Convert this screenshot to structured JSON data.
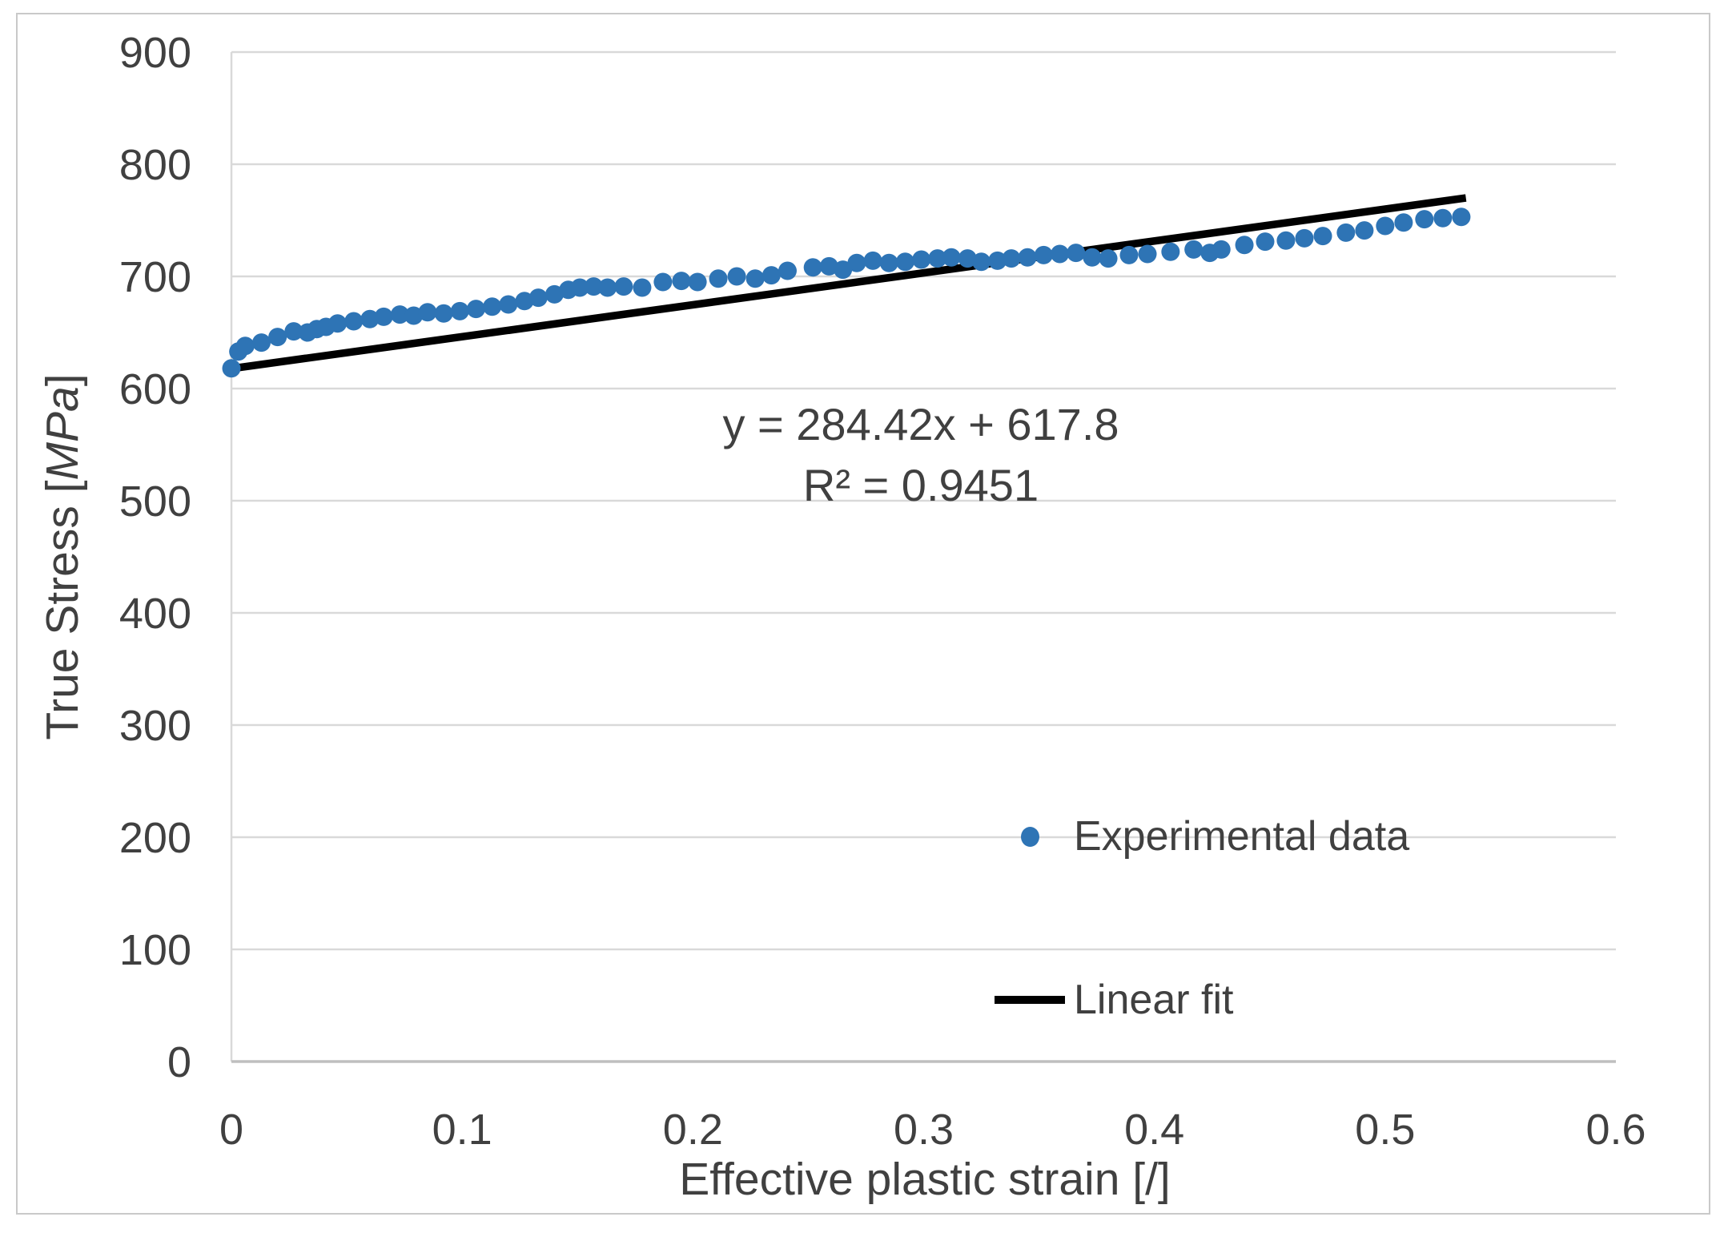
{
  "colors": {
    "scatter": "#2E74B5",
    "fit_line": "#000000",
    "text": "#404040",
    "gridline": "#D9D9D9",
    "axis_line": "#BFBFBF"
  },
  "chart_data": {
    "type": "scatter",
    "title": "",
    "xlabel": "Effective plastic strain [/]",
    "ylabel": "True Stress [MPa]",
    "ylabel_parts": {
      "prefix": "True Stress [",
      "unit": "MPa",
      "suffix": "]"
    },
    "xlim": [
      0,
      0.6
    ],
    "ylim": [
      0,
      900
    ],
    "x_ticks": {
      "values": [
        0,
        0.1,
        0.2,
        0.3,
        0.4,
        0.5,
        0.6
      ],
      "labels": [
        "0",
        "0.1",
        "0.2",
        "0.3",
        "0.4",
        "0.5",
        "0.6"
      ]
    },
    "y_ticks": {
      "values": [
        0,
        100,
        200,
        300,
        400,
        500,
        600,
        700,
        800,
        900
      ],
      "labels": [
        "0",
        "100",
        "200",
        "300",
        "400",
        "500",
        "600",
        "700",
        "800",
        "900"
      ]
    },
    "grid": "horizontal-only",
    "legend_position": "inside-lower-right",
    "annotation": {
      "equation": "y = 284.42x + 617.8",
      "r_squared": "R² = 0.9451"
    },
    "series": [
      {
        "name": "Experimental data",
        "type": "scatter",
        "marker": "dot",
        "color": "#2E74B5",
        "points": [
          [
            0.0,
            618
          ],
          [
            0.003,
            633
          ],
          [
            0.006,
            638
          ],
          [
            0.013,
            641
          ],
          [
            0.02,
            646
          ],
          [
            0.027,
            651
          ],
          [
            0.033,
            650
          ],
          [
            0.037,
            653
          ],
          [
            0.041,
            655
          ],
          [
            0.046,
            658
          ],
          [
            0.053,
            660
          ],
          [
            0.06,
            662
          ],
          [
            0.066,
            664
          ],
          [
            0.073,
            666
          ],
          [
            0.079,
            665
          ],
          [
            0.085,
            668
          ],
          [
            0.092,
            667
          ],
          [
            0.099,
            669
          ],
          [
            0.106,
            671
          ],
          [
            0.113,
            673
          ],
          [
            0.12,
            675
          ],
          [
            0.127,
            678
          ],
          [
            0.133,
            681
          ],
          [
            0.14,
            684
          ],
          [
            0.146,
            688
          ],
          [
            0.151,
            690
          ],
          [
            0.157,
            691
          ],
          [
            0.163,
            690
          ],
          [
            0.17,
            691
          ],
          [
            0.178,
            690
          ],
          [
            0.187,
            695
          ],
          [
            0.195,
            696
          ],
          [
            0.202,
            695
          ],
          [
            0.211,
            698
          ],
          [
            0.219,
            700
          ],
          [
            0.227,
            698
          ],
          [
            0.234,
            701
          ],
          [
            0.241,
            705
          ],
          [
            0.252,
            708
          ],
          [
            0.259,
            709
          ],
          [
            0.265,
            706
          ],
          [
            0.271,
            712
          ],
          [
            0.278,
            714
          ],
          [
            0.285,
            712
          ],
          [
            0.292,
            713
          ],
          [
            0.299,
            715
          ],
          [
            0.306,
            716
          ],
          [
            0.312,
            717
          ],
          [
            0.319,
            716
          ],
          [
            0.325,
            713
          ],
          [
            0.332,
            714
          ],
          [
            0.338,
            716
          ],
          [
            0.345,
            717
          ],
          [
            0.352,
            719
          ],
          [
            0.359,
            720
          ],
          [
            0.366,
            721
          ],
          [
            0.373,
            717
          ],
          [
            0.38,
            716
          ],
          [
            0.389,
            719
          ],
          [
            0.397,
            720
          ],
          [
            0.407,
            722
          ],
          [
            0.417,
            724
          ],
          [
            0.424,
            721
          ],
          [
            0.429,
            724
          ],
          [
            0.439,
            728
          ],
          [
            0.448,
            731
          ],
          [
            0.457,
            732
          ],
          [
            0.465,
            734
          ],
          [
            0.473,
            736
          ],
          [
            0.483,
            739
          ],
          [
            0.491,
            741
          ],
          [
            0.5,
            745
          ],
          [
            0.508,
            748
          ],
          [
            0.517,
            751
          ],
          [
            0.525,
            752
          ],
          [
            0.533,
            753
          ]
        ]
      },
      {
        "name": "Linear fit",
        "type": "line",
        "color": "#000000",
        "slope": 284.42,
        "intercept": 617.8,
        "x_range": [
          0,
          0.535
        ]
      }
    ],
    "legend": [
      {
        "label": "Experimental data",
        "marker": "dot",
        "color": "#2E74B5"
      },
      {
        "label": "Linear fit",
        "marker": "line",
        "color": "#000000"
      }
    ]
  }
}
